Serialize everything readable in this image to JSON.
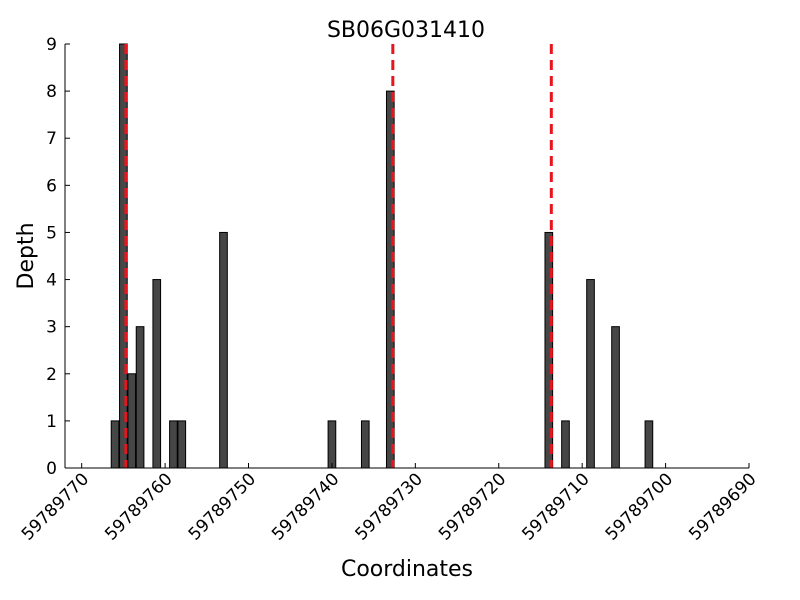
{
  "chart_data": {
    "type": "bar",
    "title": "SB06G031410",
    "xlabel": "Coordinates",
    "ylabel": "Depth",
    "x_reversed": true,
    "xlim": [
      59789772,
      59789690
    ],
    "ylim": [
      0,
      9
    ],
    "xticks": [
      59789770,
      59789760,
      59789750,
      59789740,
      59789730,
      59789720,
      59789710,
      59789700,
      59789690
    ],
    "xtick_labels": [
      "59789770",
      "59789760",
      "59789750",
      "59789740",
      "59789730",
      "59789720",
      "59789710",
      "59789700",
      "59789690"
    ],
    "yticks": [
      0,
      1,
      2,
      3,
      4,
      5,
      6,
      7,
      8,
      9
    ],
    "ytick_labels": [
      "0",
      "1",
      "2",
      "3",
      "4",
      "5",
      "6",
      "7",
      "8",
      "9"
    ],
    "grid": false,
    "bars": [
      {
        "x": 59789766,
        "depth": 1
      },
      {
        "x": 59789765,
        "depth": 9
      },
      {
        "x": 59789764,
        "depth": 2
      },
      {
        "x": 59789763,
        "depth": 3
      },
      {
        "x": 59789761,
        "depth": 4
      },
      {
        "x": 59789759,
        "depth": 1
      },
      {
        "x": 59789758,
        "depth": 1
      },
      {
        "x": 59789753,
        "depth": 5
      },
      {
        "x": 59789740,
        "depth": 1
      },
      {
        "x": 59789736,
        "depth": 1
      },
      {
        "x": 59789733,
        "depth": 8
      },
      {
        "x": 59789714,
        "depth": 5
      },
      {
        "x": 59789712,
        "depth": 1
      },
      {
        "x": 59789709,
        "depth": 4
      },
      {
        "x": 59789706,
        "depth": 3
      },
      {
        "x": 59789702,
        "depth": 1
      }
    ],
    "vertical_markers": [
      59789764.7,
      59789732.7,
      59789713.7
    ],
    "colors": {
      "bar": "#464646",
      "marker": "#e8141e"
    }
  }
}
